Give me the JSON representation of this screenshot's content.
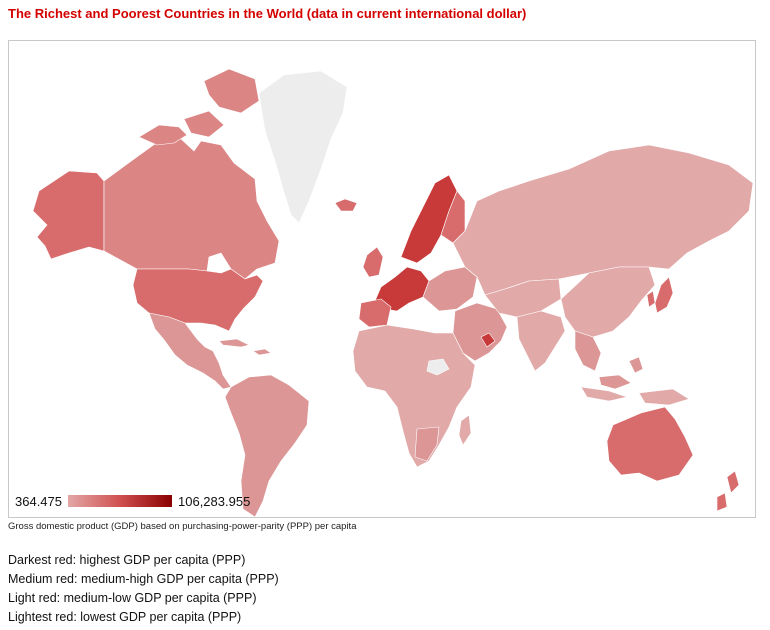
{
  "title": "The Richest and Poorest Countries in the World (data in current international dollar)",
  "legend": {
    "min_label": "364.475",
    "max_label": "106,283.955",
    "color_low": "#e3a7a7",
    "color_high": "#8a0000"
  },
  "caption": "Gross domestic product (GDP) based on purchasing-power-parity (PPP) per capita",
  "notes": [
    "Darkest red: highest GDP per capita (PPP)",
    "Medium red: medium-high GDP per capita (PPP)",
    "Light red: medium-low GDP per capita (PPP)",
    "Lightest red: lowest GDP per capita (PPP)"
  ],
  "colors": {
    "title": "#d40000",
    "no_data": "#ededed",
    "lightest": "#e2a9a9",
    "light": "#dc9696",
    "medium": "#d86c6c",
    "dark": "#c83a3a"
  }
}
